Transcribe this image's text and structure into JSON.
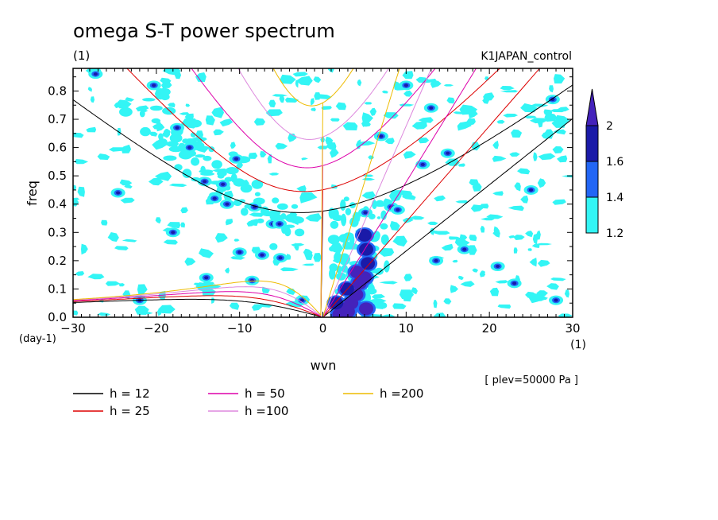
{
  "figure": {
    "title": "omega S-T power spectrum",
    "unit_label": "(1)",
    "run_name": "K1JAPAN_control",
    "level_label": "[ plev=50000 Pa ]"
  },
  "chart_data": {
    "type": "heatmap",
    "title": "omega S-T power spectrum",
    "xlabel": "wvn",
    "ylabel": "freq",
    "x_unit": "(1)",
    "y_unit": "(day-1)",
    "xlim": [
      -30,
      30
    ],
    "ylim": [
      0,
      0.88
    ],
    "x_ticks": [
      -30,
      -20,
      -10,
      0,
      10,
      20,
      30
    ],
    "y_ticks": [
      0.0,
      0.1,
      0.2,
      0.3,
      0.4,
      0.5,
      0.6,
      0.7,
      0.8
    ],
    "x_tick_labels": [
      "−30",
      "−20",
      "−10",
      "0",
      "10",
      "20",
      "30"
    ],
    "y_tick_labels": [
      "0.0",
      "0.1",
      "0.2",
      "0.3",
      "0.4",
      "0.5",
      "0.6",
      "0.7",
      "0.8"
    ],
    "colorbar": {
      "levels": [
        1.2,
        1.4,
        1.6,
        2
      ],
      "labels": [
        "1.2",
        "1.4",
        "1.6",
        "2"
      ],
      "colors": [
        "#33f5f5",
        "#2266f5",
        "#1a1aa8",
        "#4422bb"
      ]
    },
    "legend": [
      {
        "label": "h = 12",
        "color": "#000000",
        "h": 12
      },
      {
        "label": "h = 25",
        "color": "#dd0000",
        "h": 25
      },
      {
        "label": "h = 50",
        "color": "#dd00aa",
        "h": 50
      },
      {
        "label": "h =100",
        "color": "#dd88dd",
        "h": 100
      },
      {
        "label": "h =200",
        "color": "#eebb00",
        "h": 200
      }
    ],
    "strong_region": [
      {
        "x": 2.0,
        "y": 0.01,
        "level": 2
      },
      {
        "x": 2.3,
        "y": 0.03,
        "level": 2
      },
      {
        "x": 3.0,
        "y": 0.02,
        "level": 2
      },
      {
        "x": 3.4,
        "y": 0.05,
        "level": 2
      },
      {
        "x": 4.0,
        "y": 0.08,
        "level": 2
      },
      {
        "x": 4.4,
        "y": 0.12,
        "level": 2
      },
      {
        "x": 4.1,
        "y": 0.16,
        "level": 2
      },
      {
        "x": 5.0,
        "y": 0.14,
        "level": 2
      },
      {
        "x": 5.2,
        "y": 0.03,
        "level": 2
      },
      {
        "x": 5.4,
        "y": 0.19,
        "level": 1.6
      },
      {
        "x": 5.2,
        "y": 0.24,
        "level": 1.6
      },
      {
        "x": 5.0,
        "y": 0.29,
        "level": 1.6
      },
      {
        "x": 2.9,
        "y": 0.1,
        "level": 1.6
      },
      {
        "x": 1.6,
        "y": 0.05,
        "level": 1.6
      }
    ],
    "scattered_maxima": [
      {
        "x": -27.3,
        "y": 0.86
      },
      {
        "x": -17.5,
        "y": 0.67
      },
      {
        "x": -16.0,
        "y": 0.6
      },
      {
        "x": -14.2,
        "y": 0.48
      },
      {
        "x": -12.0,
        "y": 0.47
      },
      {
        "x": -11.5,
        "y": 0.4
      },
      {
        "x": -8.2,
        "y": 0.39
      },
      {
        "x": -6.0,
        "y": 0.33
      },
      {
        "x": -5.2,
        "y": 0.33
      },
      {
        "x": -7.3,
        "y": 0.22
      },
      {
        "x": -5.1,
        "y": 0.21
      },
      {
        "x": -13.0,
        "y": 0.42
      },
      {
        "x": -20.3,
        "y": 0.82
      },
      {
        "x": -10.4,
        "y": 0.56
      },
      {
        "x": -14.0,
        "y": 0.14
      },
      {
        "x": -24.6,
        "y": 0.44
      },
      {
        "x": -18.0,
        "y": 0.3
      },
      {
        "x": -10.0,
        "y": 0.23
      },
      {
        "x": 8.2,
        "y": 0.39
      },
      {
        "x": 9.0,
        "y": 0.38
      },
      {
        "x": 5.1,
        "y": 0.37
      },
      {
        "x": 7.0,
        "y": 0.64
      },
      {
        "x": 12.0,
        "y": 0.54
      },
      {
        "x": 13.0,
        "y": 0.74
      },
      {
        "x": 10.0,
        "y": 0.82
      },
      {
        "x": 15.0,
        "y": 0.58
      },
      {
        "x": 27.6,
        "y": 0.77
      },
      {
        "x": 25.0,
        "y": 0.45
      },
      {
        "x": 17.0,
        "y": 0.24
      },
      {
        "x": 13.6,
        "y": 0.2
      },
      {
        "x": 21.0,
        "y": 0.18
      },
      {
        "x": 23.0,
        "y": 0.12
      },
      {
        "x": 28.0,
        "y": 0.06
      },
      {
        "x": -22.0,
        "y": 0.06
      },
      {
        "x": -2.5,
        "y": 0.06
      },
      {
        "x": -8.5,
        "y": 0.13
      }
    ]
  }
}
